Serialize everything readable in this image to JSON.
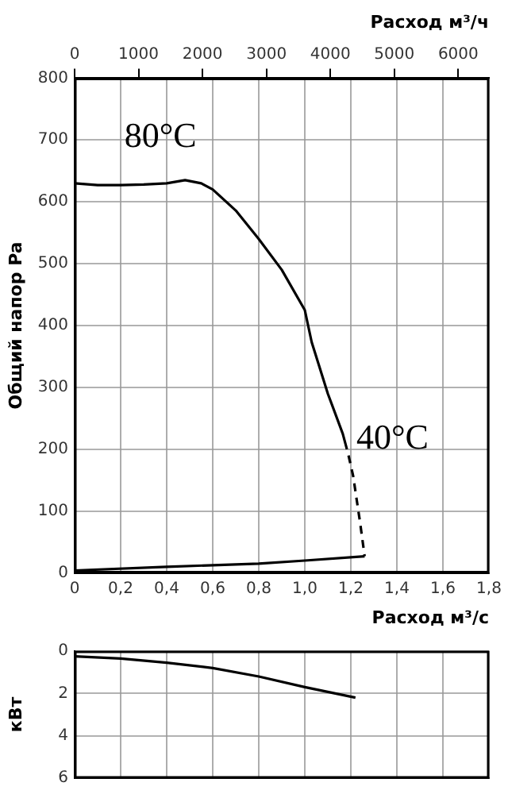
{
  "chart_data": [
    {
      "type": "line",
      "xlabel": "Расход м³/с",
      "x2label": "Расход м³/ч",
      "ylabel": "Общий напор Pa",
      "xlim": [
        0,
        1.8
      ],
      "xticks": [
        0,
        {
          "value": 0.2,
          "label": "0,2"
        },
        {
          "value": 0.4,
          "label": "0,4"
        },
        {
          "value": 0.6,
          "label": "0,6"
        },
        {
          "value": 0.8,
          "label": "0,8"
        },
        {
          "value": 1.0,
          "label": "1,0"
        },
        {
          "value": 1.2,
          "label": "1,2"
        },
        {
          "value": 1.4,
          "label": "1,4"
        },
        {
          "value": 1.6,
          "label": "1,6"
        },
        {
          "value": 1.8,
          "label": "1,8"
        }
      ],
      "x2lim": [
        0,
        6480
      ],
      "x2ticks": [
        0,
        1000,
        2000,
        3000,
        4000,
        5000,
        6000
      ],
      "ylim": [
        0,
        800
      ],
      "yticks": [
        0,
        100,
        200,
        300,
        400,
        500,
        600,
        700,
        800
      ],
      "grid": true,
      "marker": "none",
      "series": [
        {
          "color": "#000000",
          "line_style": "solid",
          "x": [
            0,
            0.1,
            0.2,
            0.3,
            0.4,
            0.48,
            0.55,
            0.6,
            0.7,
            0.8,
            0.9,
            1.0,
            1.03,
            1.1,
            1.165,
            1.183
          ],
          "values": [
            630,
            627,
            627,
            628,
            630,
            635,
            630,
            620,
            586,
            540,
            490,
            425,
            373,
            290,
            225,
            200
          ]
        },
        {
          "color": "#000000",
          "line_style": "dashed",
          "x": [
            1.19,
            1.21,
            1.24,
            1.26
          ],
          "values": [
            190,
            157,
            82,
            27
          ]
        },
        {
          "color": "#000000",
          "line_style": "solid",
          "x": [
            0,
            0.4,
            0.8,
            1.0,
            1.26
          ],
          "values": [
            4,
            10,
            15,
            20,
            27
          ]
        }
      ],
      "annotations": [
        "80°C",
        "40°C"
      ]
    },
    {
      "type": "line",
      "ylabel": "кВт",
      "xlim": [
        0,
        1.8
      ],
      "xticks": [
        0,
        0.2,
        0.4,
        0.6,
        0.8,
        1.0,
        1.2,
        1.4,
        1.6,
        1.8
      ],
      "ylim": [
        6,
        0
      ],
      "yticks": [
        0,
        2,
        4,
        6
      ],
      "grid": true,
      "marker": "none",
      "tick_labels": "y",
      "series": [
        {
          "color": "#000000",
          "line_style": "solid",
          "x": [
            0,
            0.2,
            0.4,
            0.6,
            0.8,
            1.0,
            1.22
          ],
          "values": [
            0.25,
            0.35,
            0.55,
            0.8,
            1.2,
            1.7,
            2.2
          ]
        }
      ]
    }
  ]
}
